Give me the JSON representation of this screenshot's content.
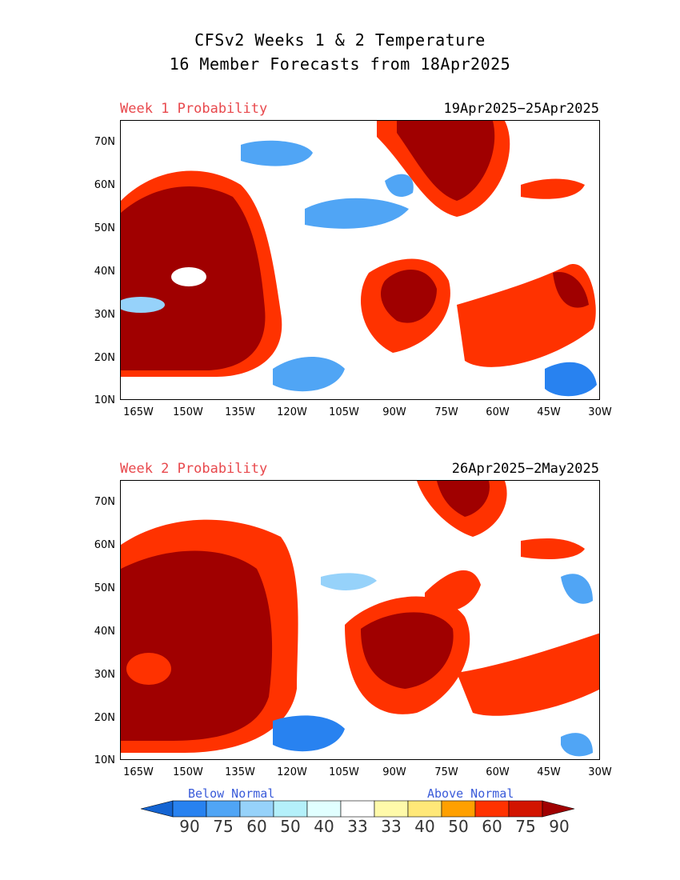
{
  "title_line1": "CFSv2 Weeks 1 & 2 Temperature",
  "title_line2": "16 Member Forecasts from 18Apr2025",
  "panels": [
    {
      "label": "Week 1 Probability",
      "dates": "19Apr2025−25Apr2025"
    },
    {
      "label": "Week 2 Probability",
      "dates": "26Apr2025−2May2025"
    }
  ],
  "y_ticks": [
    "70N",
    "60N",
    "50N",
    "40N",
    "30N",
    "20N",
    "10N"
  ],
  "x_ticks": [
    "165W",
    "150W",
    "135W",
    "120W",
    "105W",
    "90W",
    "75W",
    "60W",
    "45W",
    "30W"
  ],
  "legend": {
    "below_label": "Below Normal",
    "above_label": "Above Normal",
    "values": [
      "90",
      "75",
      "60",
      "50",
      "40",
      "33",
      "33",
      "40",
      "50",
      "60",
      "75",
      "90"
    ],
    "colors": [
      "#1464d2",
      "#2882f0",
      "#50a5f5",
      "#96d2fa",
      "#b4f0fa",
      "#e1ffff",
      "#ffffff",
      "#fffaaa",
      "#ffe878",
      "#ffa000",
      "#ff3200",
      "#d21400",
      "#a00000"
    ]
  }
}
